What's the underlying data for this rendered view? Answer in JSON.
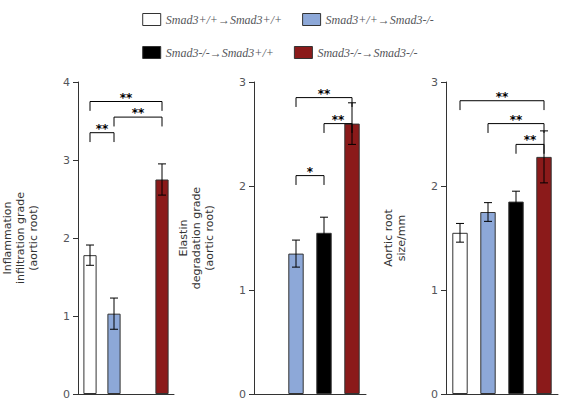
{
  "chart_data": [
    {
      "type": "bar",
      "y_label": "Inflammation\ninfiltration grade\n(aortic root)",
      "categories": [
        null
      ],
      "series": [
        {
          "name": "Smad3+/+→Smad3+/+",
          "color": "white",
          "values": [
            1.78
          ],
          "err": [
            0.13
          ]
        },
        {
          "name": "Smad3+/+→Smad3-/-",
          "color": "#8da8d8",
          "values": [
            1.03
          ],
          "err": [
            0.2
          ]
        },
        {
          "name": "Smad3-/-→Smad3+/+",
          "color": "black",
          "values": [
            null
          ],
          "err": [
            null
          ]
        },
        {
          "name": "Smad3-/-→Smad3-/-",
          "color": "#8b1a1a",
          "values": [
            2.75
          ],
          "err": [
            0.2
          ]
        }
      ],
      "ylim": [
        0,
        4
      ],
      "yticks": [
        0,
        1,
        2,
        3,
        4
      ],
      "tick_labels": "y",
      "legend": "top",
      "annotations": [
        {
          "text": "**",
          "from": "Smad3+/+→Smad3+/+",
          "to": "Smad3+/+→Smad3-/-",
          "y": 3.35
        },
        {
          "text": "**",
          "from": "Smad3+/+→Smad3+/+",
          "to": "Smad3-/-→Smad3-/-",
          "y": 3.75
        },
        {
          "text": "**",
          "from": "Smad3+/+→Smad3-/-",
          "to": "Smad3-/-→Smad3-/-",
          "y": 3.55
        }
      ]
    },
    {
      "type": "bar",
      "y_label": "Elastin\ndegradation grade\n(aortic root)",
      "categories": [
        null
      ],
      "series": [
        {
          "name": "Smad3+/+→Smad3+/+",
          "color": "white",
          "values": [
            null
          ],
          "err": [
            null
          ]
        },
        {
          "name": "Smad3+/+→Smad3-/-",
          "color": "#8da8d8",
          "values": [
            1.35
          ],
          "err": [
            0.13
          ]
        },
        {
          "name": "Smad3-/-→Smad3+/+",
          "color": "black",
          "values": [
            1.55
          ],
          "err": [
            0.15
          ]
        },
        {
          "name": "Smad3-/-→Smad3-/-",
          "color": "#8b1a1a",
          "values": [
            2.6
          ],
          "err": [
            0.2
          ]
        }
      ],
      "ylim": [
        0,
        3
      ],
      "yticks": [
        0,
        1,
        2,
        3
      ],
      "tick_labels": "y",
      "annotations": [
        {
          "text": "**",
          "from": "Smad3+/+→Smad3-/-",
          "to": "Smad3-/-→Smad3-/-",
          "y": 2.85
        },
        {
          "text": "**",
          "from": "Smad3-/-→Smad3+/+",
          "to": "Smad3-/-→Smad3-/-",
          "y": 2.6
        },
        {
          "text": "*",
          "from": "Smad3+/+→Smad3-/-",
          "to": "Smad3-/-→Smad3+/+",
          "y": 2.1
        }
      ]
    },
    {
      "type": "bar",
      "y_label": "Aortic root\nsize/mm",
      "categories": [
        null
      ],
      "series": [
        {
          "name": "Smad3+/+→Smad3+/+",
          "color": "white",
          "values": [
            1.55
          ],
          "err": [
            0.09
          ]
        },
        {
          "name": "Smad3+/+→Smad3-/-",
          "color": "#8da8d8",
          "values": [
            1.75
          ],
          "err": [
            0.09
          ]
        },
        {
          "name": "Smad3-/-→Smad3+/+",
          "color": "black",
          "values": [
            1.85
          ],
          "err": [
            0.1
          ]
        },
        {
          "name": "Smad3-/-→Smad3-/-",
          "color": "#8b1a1a",
          "values": [
            2.28
          ],
          "err": [
            0.25
          ]
        }
      ],
      "ylim": [
        0,
        3
      ],
      "yticks": [
        0,
        1,
        2,
        3
      ],
      "tick_labels": "y",
      "annotations": [
        {
          "text": "**",
          "from": "Smad3+/+→Smad3+/+",
          "to": "Smad3-/-→Smad3-/-",
          "y": 2.82
        },
        {
          "text": "**",
          "from": "Smad3+/+→Smad3-/-",
          "to": "Smad3-/-→Smad3-/-",
          "y": 2.6
        },
        {
          "text": "**",
          "from": "Smad3-/-→Smad3+/+",
          "to": "Smad3-/-→Smad3-/-",
          "y": 2.4
        }
      ]
    }
  ]
}
